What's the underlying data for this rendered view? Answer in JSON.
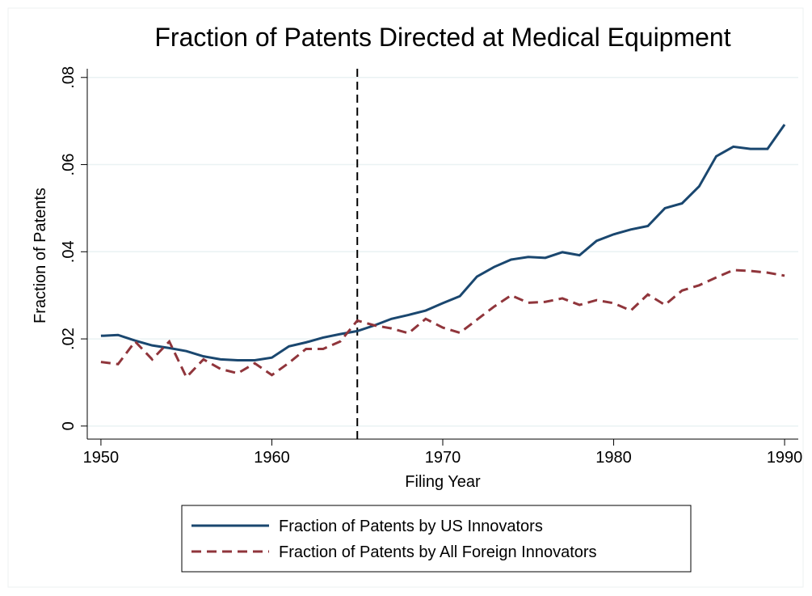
{
  "chart_data": {
    "type": "line",
    "title": "Fraction of Patents Directed at Medical Equipment",
    "x_label": "Filing Year",
    "y_label": "Fraction of Patents",
    "x": [
      1950,
      1951,
      1952,
      1953,
      1954,
      1955,
      1956,
      1957,
      1958,
      1959,
      1960,
      1961,
      1962,
      1963,
      1964,
      1965,
      1966,
      1967,
      1968,
      1969,
      1970,
      1971,
      1972,
      1973,
      1974,
      1975,
      1976,
      1977,
      1978,
      1979,
      1980,
      1981,
      1982,
      1983,
      1984,
      1985,
      1986,
      1987,
      1988,
      1989,
      1990
    ],
    "series": [
      {
        "name": "Fraction of Patents by US Innovators",
        "color": "#1a476f",
        "linestyle": "solid",
        "values": [
          0.0207,
          0.0209,
          0.0196,
          0.0185,
          0.0179,
          0.0172,
          0.016,
          0.0153,
          0.0151,
          0.0151,
          0.0157,
          0.0183,
          0.0192,
          0.0203,
          0.0211,
          0.0218,
          0.0231,
          0.0246,
          0.0255,
          0.0265,
          0.0282,
          0.0298,
          0.0343,
          0.0365,
          0.0382,
          0.0388,
          0.0386,
          0.0399,
          0.0392,
          0.0425,
          0.044,
          0.0451,
          0.0459,
          0.05,
          0.0511,
          0.055,
          0.0619,
          0.0641,
          0.0636,
          0.0636,
          0.0692
        ]
      },
      {
        "name": "Fraction of Patents by All Foreign Innovators",
        "color": "#90353b",
        "linestyle": "dashed",
        "values": [
          0.0147,
          0.0142,
          0.0194,
          0.0153,
          0.0194,
          0.0112,
          0.0153,
          0.0131,
          0.0121,
          0.0144,
          0.0117,
          0.0145,
          0.0177,
          0.0177,
          0.0194,
          0.0242,
          0.0231,
          0.0224,
          0.0213,
          0.0246,
          0.0226,
          0.0214,
          0.0244,
          0.0274,
          0.03,
          0.0283,
          0.0285,
          0.0293,
          0.0278,
          0.0289,
          0.0282,
          0.0265,
          0.0302,
          0.0278,
          0.0311,
          0.0323,
          0.0341,
          0.0358,
          0.0356,
          0.0352,
          0.0345
        ]
      }
    ],
    "vline": 1965,
    "xlim": [
      1949.2,
      1990.8
    ],
    "ylim": [
      -0.003,
      0.082
    ],
    "xticks": [
      1950,
      1960,
      1970,
      1980,
      1990
    ],
    "yticks": [
      0,
      {
        "value": 0.02,
        "label": ".02"
      },
      {
        "value": 0.04,
        "label": ".04"
      },
      {
        "value": 0.06,
        "label": ".06"
      },
      {
        "value": 0.08,
        "label": ".08"
      }
    ],
    "grid": true,
    "legend": "bottom"
  }
}
